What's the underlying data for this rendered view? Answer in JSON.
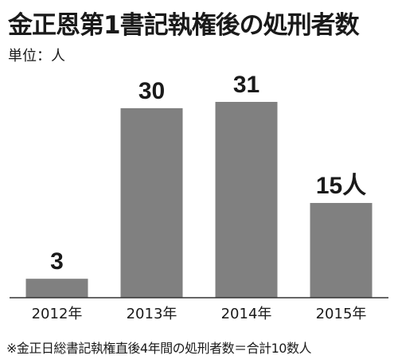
{
  "title": "金正恩第1書記執権後の処刑者数",
  "unit_label": "単位：人",
  "note": "※金正日総書記執権直後4年間の処刑者数＝合計10数人",
  "chart_data": {
    "type": "bar",
    "categories": [
      "2012年",
      "2013年",
      "2014年",
      "2015年"
    ],
    "values": [
      3,
      30,
      31,
      15
    ],
    "value_labels": [
      "3",
      "30",
      "31",
      "15人"
    ],
    "title": "金正恩第1書記執権後の処刑者数",
    "xlabel": "",
    "ylabel": "",
    "ylim": [
      0,
      31
    ],
    "grid": false,
    "legend": "none",
    "bar_color": "#808080",
    "axis_color": "#333333"
  }
}
